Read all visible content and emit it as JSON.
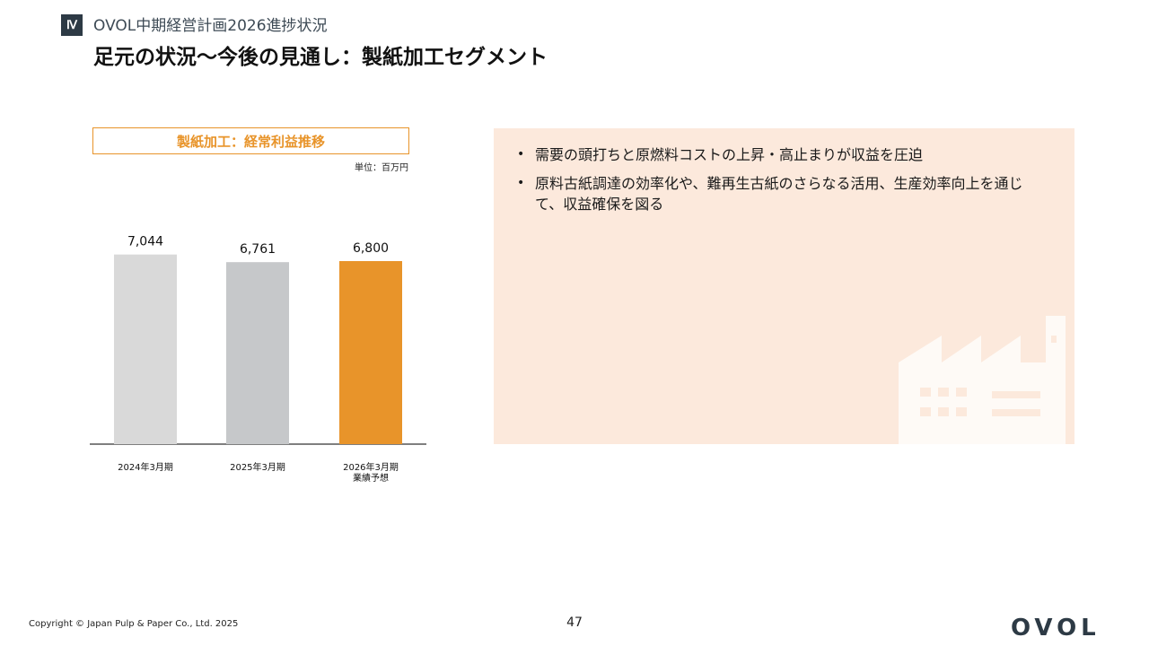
{
  "header": {
    "section_badge": "Ⅳ",
    "section_title": "OVOL中期経営計画2026進捗状況",
    "page_title": "足元の状況～今後の見通し：製紙加工セグメント"
  },
  "chart_box": {
    "title": "製紙加工：経常利益推移",
    "unit": "単位：百万円"
  },
  "chart_data": {
    "type": "bar",
    "title": "製紙加工：経常利益推移",
    "unit": "単位：百万円",
    "categories": [
      [
        "2024年3月期"
      ],
      [
        "2025年3月期"
      ],
      [
        "2026年3月期",
        "業績予想"
      ]
    ],
    "values": [
      7044,
      6761,
      6800
    ],
    "value_labels": [
      "7,044",
      "6,761",
      "6,800"
    ],
    "colors": [
      "#d9d9d9",
      "#c6c8ca",
      "#e8942a"
    ],
    "ylim": [
      0,
      7500
    ],
    "grid": false,
    "legend": "none"
  },
  "panel": {
    "bullets": [
      "需要の頭打ちと原燃料コストの上昇・高止まりが収益を圧迫",
      "原料古紙調達の効率化や、難再生古紙のさらなる活用、生産効率向上を通じて、収益確保を図る"
    ],
    "icon": "factory-icon",
    "background": "#fce9dc"
  },
  "footer": {
    "copyright": "Copyright © Japan Pulp & Paper Co., Ltd. 2025",
    "page_number": "47",
    "logo": "OVOL"
  }
}
